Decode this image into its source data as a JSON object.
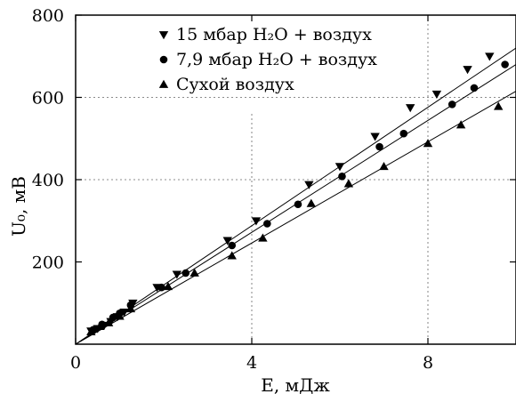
{
  "chart_data": {
    "type": "scatter",
    "xlabel": "E, мДж",
    "ylabel": "U₀, мВ",
    "xlim": [
      0,
      10
    ],
    "ylim": [
      0,
      800
    ],
    "xticks": [
      0,
      4,
      8
    ],
    "yticks": [
      200,
      400,
      600,
      800
    ],
    "grid": "dashed lines at x=4 (upper part), x=8 and y=400, y=600",
    "legend_position": "top-center",
    "series": [
      {
        "name": "15 мбар H₂O + воздух",
        "marker": "triangle-down",
        "fit_slope": 72.0,
        "points": [
          [
            0.35,
            32
          ],
          [
            0.5,
            38
          ],
          [
            0.65,
            46
          ],
          [
            0.8,
            55
          ],
          [
            0.95,
            67
          ],
          [
            1.1,
            78
          ],
          [
            1.3,
            100
          ],
          [
            1.85,
            138
          ],
          [
            2.3,
            170
          ],
          [
            3.45,
            252
          ],
          [
            4.1,
            300
          ],
          [
            5.3,
            388
          ],
          [
            6.0,
            432
          ],
          [
            6.8,
            505
          ],
          [
            7.6,
            575
          ],
          [
            8.2,
            608
          ],
          [
            8.9,
            668
          ],
          [
            9.4,
            700
          ]
        ]
      },
      {
        "name": "7,9 мбар H₂O + воздух",
        "marker": "circle",
        "fit_slope": 68.0,
        "points": [
          [
            0.4,
            35
          ],
          [
            0.6,
            48
          ],
          [
            0.85,
            65
          ],
          [
            1.0,
            75
          ],
          [
            1.25,
            95
          ],
          [
            1.95,
            138
          ],
          [
            2.5,
            173
          ],
          [
            3.55,
            240
          ],
          [
            4.35,
            293
          ],
          [
            5.05,
            340
          ],
          [
            6.05,
            408
          ],
          [
            6.9,
            480
          ],
          [
            7.45,
            512
          ],
          [
            8.55,
            583
          ],
          [
            9.05,
            623
          ],
          [
            9.75,
            680
          ]
        ]
      },
      {
        "name": "Сухой воздух",
        "marker": "triangle-up",
        "fit_slope": 61.5,
        "points": [
          [
            0.35,
            30
          ],
          [
            0.55,
            43
          ],
          [
            0.75,
            52
          ],
          [
            1.0,
            68
          ],
          [
            1.25,
            86
          ],
          [
            2.1,
            140
          ],
          [
            2.7,
            173
          ],
          [
            3.55,
            215
          ],
          [
            4.25,
            258
          ],
          [
            5.35,
            342
          ],
          [
            6.2,
            390
          ],
          [
            7.0,
            432
          ],
          [
            8.0,
            488
          ],
          [
            8.75,
            533
          ],
          [
            9.6,
            578
          ]
        ]
      }
    ]
  }
}
